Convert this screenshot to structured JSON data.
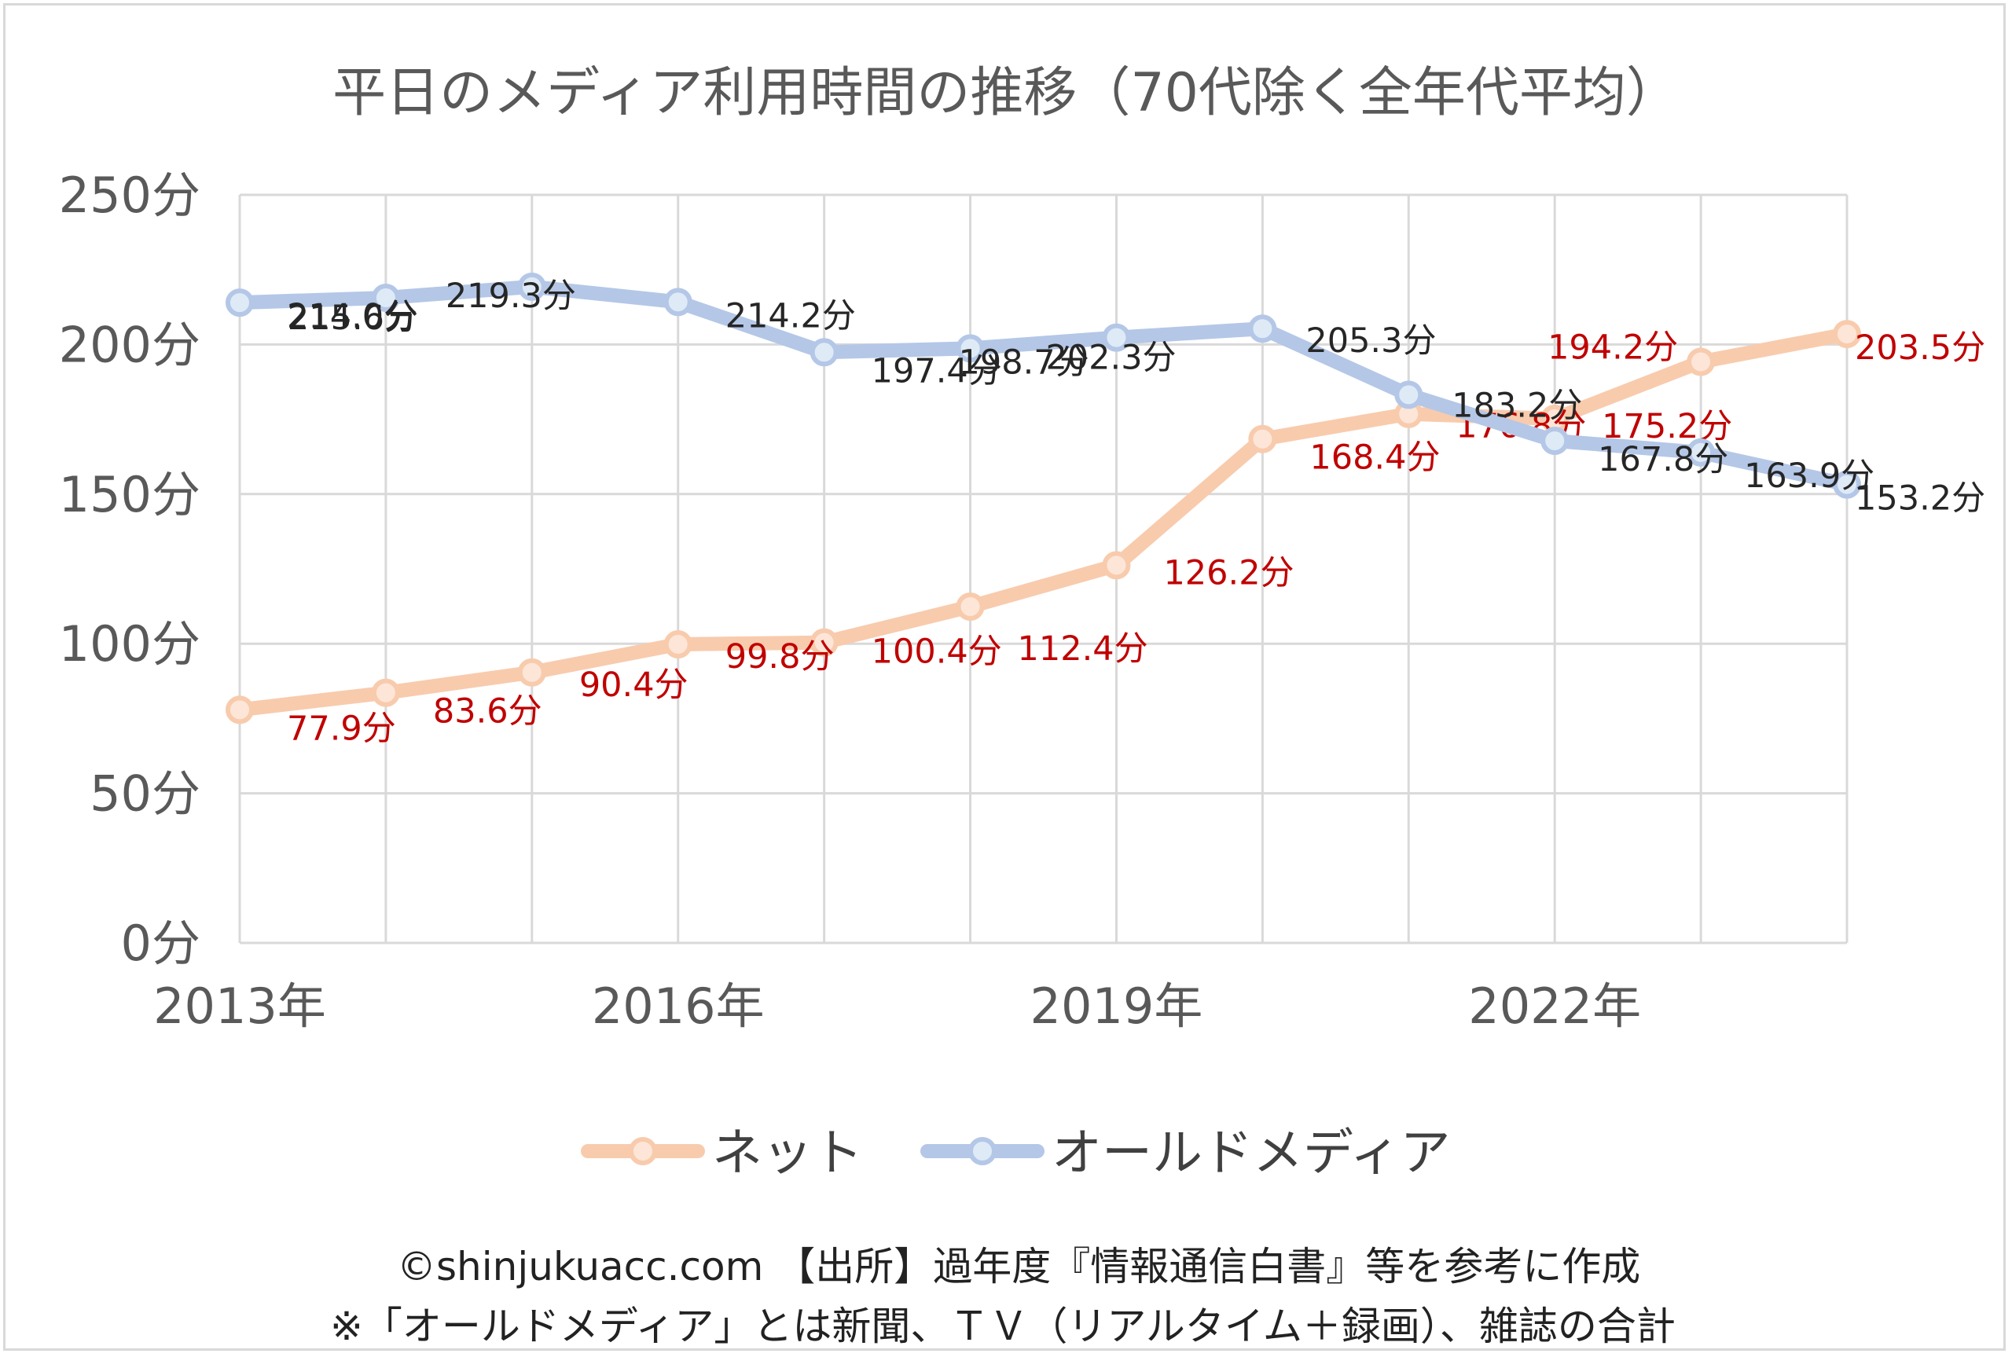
{
  "chart_data": {
    "type": "line",
    "title": "平日のメディア利用時間の推移（70代除く全年代平均）",
    "x": [
      "2013年",
      "2014年",
      "2015年",
      "2016年",
      "2017年",
      "2018年",
      "2019年",
      "2020年",
      "2021年",
      "2022年",
      "2023年",
      "2024年"
    ],
    "x_tick_labels": [
      "2013年",
      "2016年",
      "2019年",
      "2022年"
    ],
    "y_ticks": [
      "0分",
      "50分",
      "100分",
      "150分",
      "200分",
      "250分"
    ],
    "ylim": [
      0,
      250
    ],
    "grid": true,
    "legend_position": "bottom",
    "series": [
      {
        "name": "ネット",
        "color": "#f8cbad",
        "label_color": "#c00000",
        "values": [
          77.9,
          83.6,
          90.4,
          99.8,
          100.4,
          112.4,
          126.2,
          168.4,
          176.8,
          175.2,
          194.2,
          203.5
        ],
        "labels": [
          "77.9分",
          "83.6分",
          "90.4分",
          "99.8分",
          "100.4分",
          "112.4分",
          "126.2分",
          "168.4分",
          "176.8分",
          "175.2分",
          "194.2分",
          "203.5分"
        ]
      },
      {
        "name": "オールドメディア",
        "color": "#b4c7e7",
        "label_color": "#262626",
        "values": [
          214.0,
          215.6,
          219.3,
          214.2,
          197.4,
          198.7,
          202.3,
          205.3,
          183.2,
          167.8,
          163.9,
          153.2
        ],
        "labels": [
          "214.0分",
          "215.6分",
          "219.3分",
          "214.2分",
          "197.4分",
          "198.7分",
          "202.3分",
          "205.3分",
          "183.2分",
          "167.8分",
          "163.9分",
          "153.2分"
        ]
      }
    ]
  },
  "footer": {
    "line1": "©shinjukuacc.com 【出所】過年度『情報通信白書』等を参考に作成",
    "line2": "※「オールドメディア」とは新聞、ＴＶ（リアルタイム＋録画）、雑誌の合計"
  }
}
